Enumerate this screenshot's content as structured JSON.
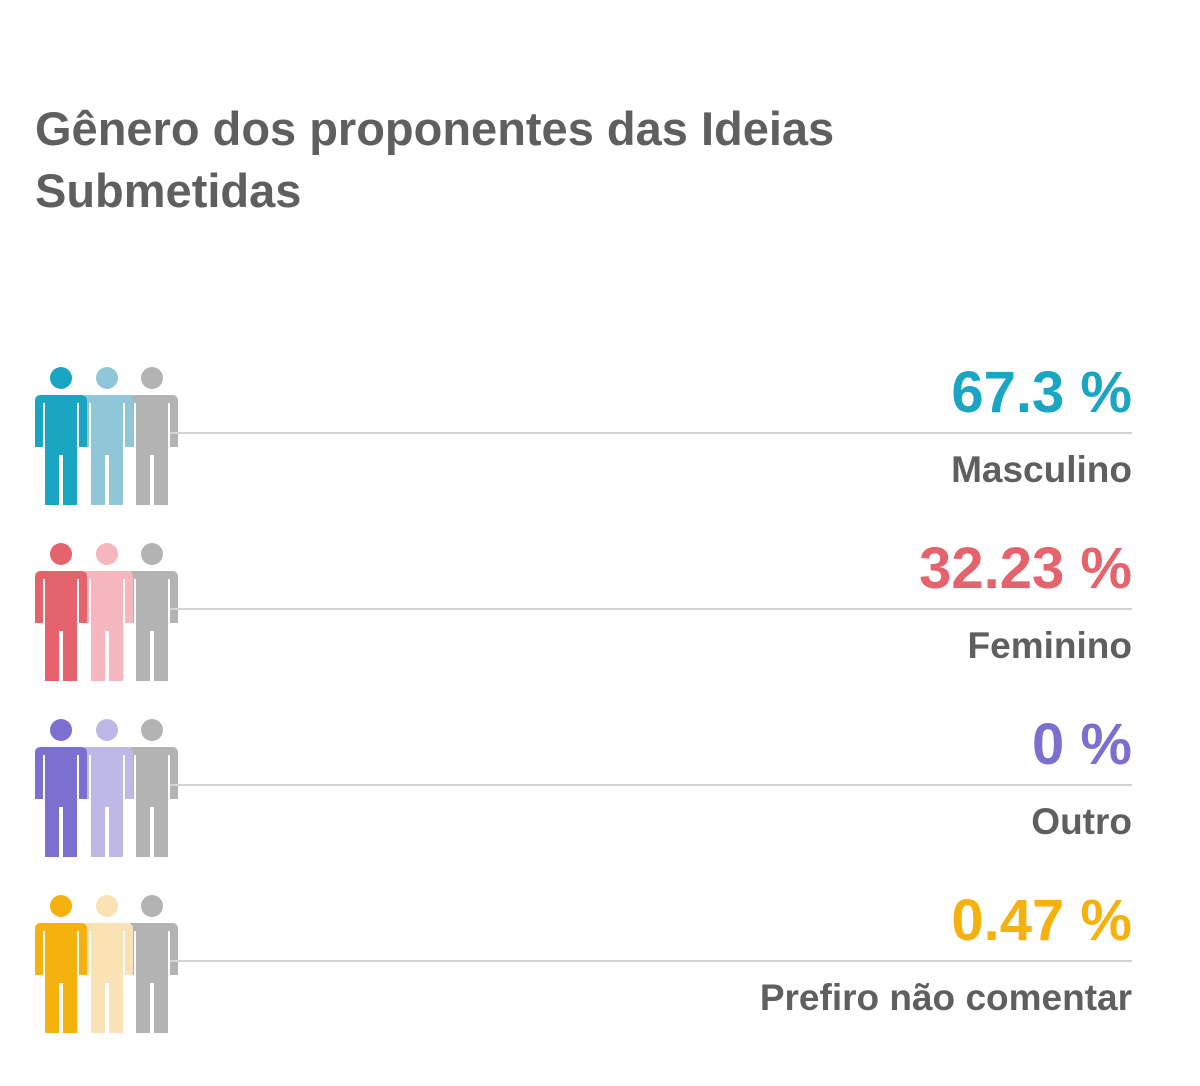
{
  "chart_data": {
    "type": "table",
    "title": "Gênero dos proponentes das Ideias Submetidas",
    "rows": [
      {
        "label": "Masculino",
        "value": 67.3,
        "value_text": "67.3 %",
        "color": "#1aa6c2",
        "light_color": "#8fc7d8",
        "neutral_color": "#b3b3b3"
      },
      {
        "label": "Feminino",
        "value": 32.23,
        "value_text": "32.23 %",
        "color": "#e5636d",
        "light_color": "#f5b6bd",
        "neutral_color": "#b3b3b3"
      },
      {
        "label": "Outro",
        "value": 0,
        "value_text": "0 %",
        "color": "#7b6fcf",
        "light_color": "#bdb8e6",
        "neutral_color": "#b3b3b3"
      },
      {
        "label": "Prefiro não comentar",
        "value": 0.47,
        "value_text": "0.47 %",
        "color": "#f5b20f",
        "light_color": "#fbe2b4",
        "neutral_color": "#b3b3b3"
      }
    ]
  }
}
